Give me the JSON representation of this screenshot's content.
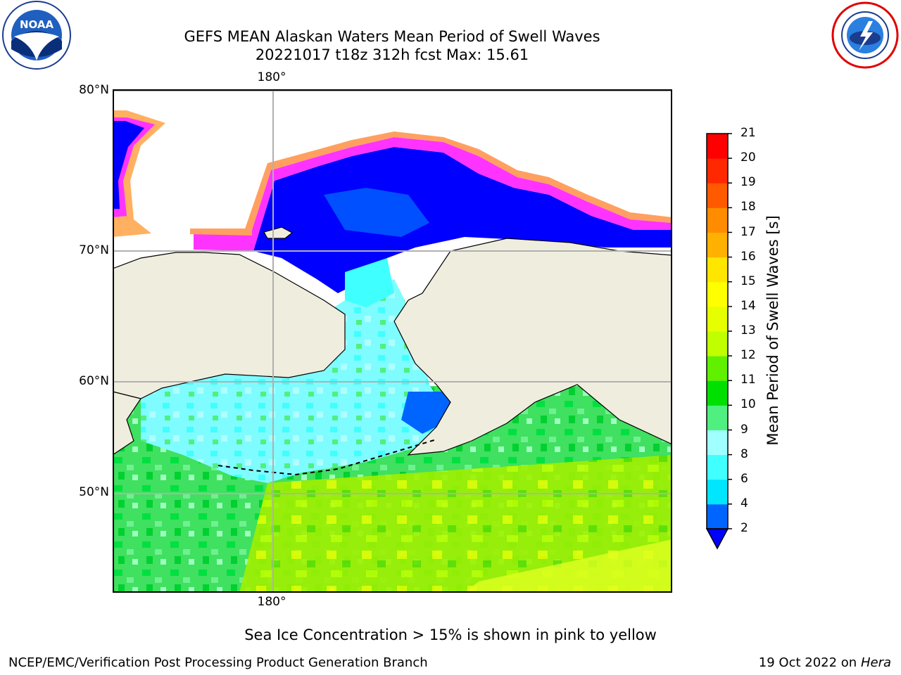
{
  "header": {
    "title_line1": "GEFS MEAN Alaskan Waters Mean Period of Swell Waves",
    "title_line2": "20221017 t18z 312h fcst   Max: 15.61"
  },
  "logos": {
    "left": {
      "name": "NOAA",
      "icon": "noaa-logo"
    },
    "right": {
      "name": "NATIONAL WEATHER SERVICE",
      "icon": "nws-logo"
    }
  },
  "map": {
    "lat_labels": [
      "80°N",
      "70°N",
      "60°N",
      "50°N"
    ],
    "lon_label_top": "180°",
    "lon_label_bottom": "180°",
    "colors": {
      "land": "#efedde",
      "ocean_low": "#0000ff",
      "ice_edge": "#ff33ff",
      "grid": "#b0b0b0"
    }
  },
  "colorbar": {
    "title": "Mean Period of Swell Waves [s]",
    "ticks": [
      "2",
      "4",
      "6",
      "8",
      "9",
      "10",
      "11",
      "12",
      "13",
      "14",
      "15",
      "16",
      "17",
      "18",
      "19",
      "20",
      "21"
    ],
    "colors": [
      "#0064ff",
      "#00e6ff",
      "#40ffff",
      "#a0ffff",
      "#50f080",
      "#00e000",
      "#60f000",
      "#c0ff00",
      "#e6ff00",
      "#ffff00",
      "#ffe600",
      "#ffb000",
      "#ff8c00",
      "#ff5a00",
      "#ff2800",
      "#ff0000"
    ],
    "extend_color": "#0000ff"
  },
  "footer": {
    "caption": "Sea Ice Concentration > 15% is shown in pink to yellow",
    "left": "NCEP/EMC/Verification Post Processing Product Generation Branch",
    "date": "19 Oct 2022 on ",
    "machine": "Hera"
  }
}
